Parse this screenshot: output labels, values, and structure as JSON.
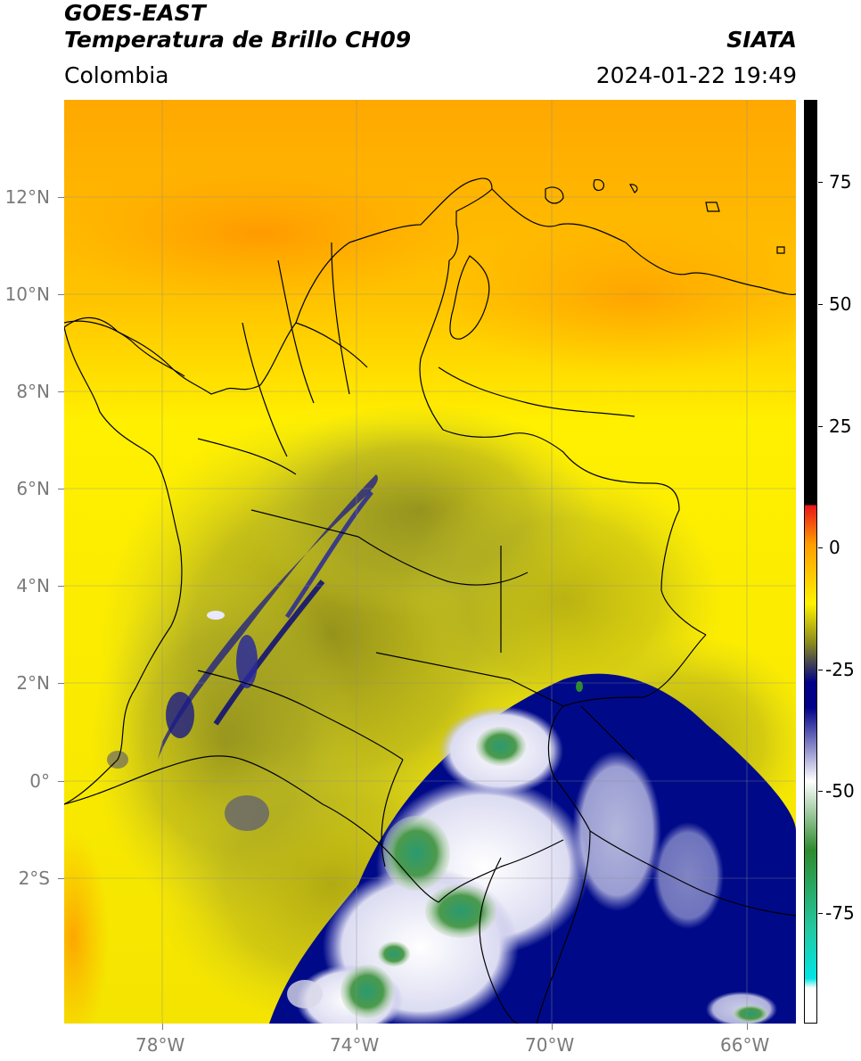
{
  "header": {
    "line1": "GOES-EAST",
    "line2": "Temperatura de Brillo CH09",
    "region": "Colombia",
    "agency": "SIATA",
    "timestamp": "2024-01-22 19:49"
  },
  "map": {
    "lat_labels": [
      {
        "deg": 12,
        "text": "12°N"
      },
      {
        "deg": 10,
        "text": "10°N"
      },
      {
        "deg": 8,
        "text": "8°N"
      },
      {
        "deg": 6,
        "text": "6°N"
      },
      {
        "deg": 4,
        "text": "4°N"
      },
      {
        "deg": 2,
        "text": "2°N"
      },
      {
        "deg": 0,
        "text": "0°"
      },
      {
        "deg": -2,
        "text": "2°S"
      }
    ],
    "lon_labels": [
      {
        "deg": -78,
        "text": "78°W"
      },
      {
        "deg": -74,
        "text": "74°W"
      },
      {
        "deg": -70,
        "text": "70°W"
      },
      {
        "deg": -66,
        "text": "66°W"
      }
    ],
    "extent": {
      "lon_min": -80,
      "lon_max": -65,
      "lat_min": -5,
      "lat_max": 14
    }
  },
  "colorbar": {
    "vmin": -97,
    "vmax": 90,
    "tick_labels": [
      {
        "value": 75,
        "text": "75"
      },
      {
        "value": 50,
        "text": "50"
      },
      {
        "value": 25,
        "text": "25"
      },
      {
        "value": 0,
        "text": "0"
      },
      {
        "value": -25,
        "text": "-25"
      },
      {
        "value": -50,
        "text": "-50"
      },
      {
        "value": -75,
        "text": "-75"
      }
    ],
    "colors": {
      "black_top": "#000000",
      "red": "#e8141a",
      "orange": "#ff9d00",
      "yellow": "#fff200",
      "olive": "#8a8a1f",
      "navy": "#000088",
      "white": "#ffffff",
      "green": "#2e8b2e",
      "teal": "#23c9a0",
      "cyan": "#00e5e5"
    }
  }
}
